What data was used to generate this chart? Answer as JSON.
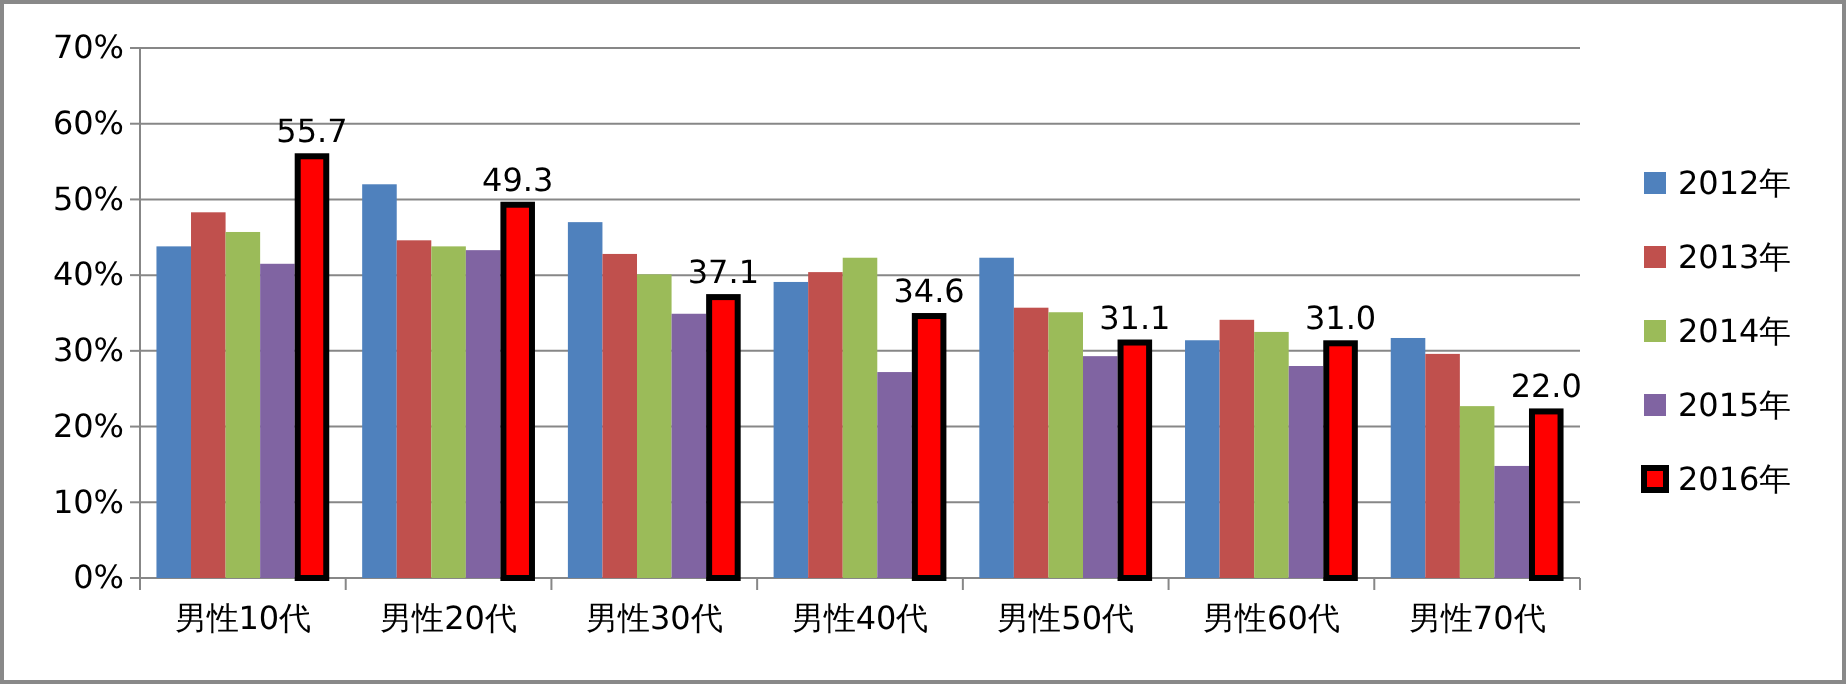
{
  "chart_data": {
    "type": "bar",
    "categories": [
      "男性10代",
      "男性20代",
      "男性30代",
      "男性40代",
      "男性50代",
      "男性60代",
      "男性70代"
    ],
    "series": [
      {
        "name": "2012年",
        "color": "#4f81bd",
        "values": [
          43.8,
          52.0,
          47.0,
          39.1,
          42.3,
          31.4,
          31.7
        ]
      },
      {
        "name": "2013年",
        "color": "#c0504d",
        "values": [
          48.3,
          44.6,
          42.8,
          40.4,
          35.7,
          34.1,
          29.6
        ]
      },
      {
        "name": "2014年",
        "color": "#9bbb59",
        "values": [
          45.7,
          43.8,
          40.1,
          42.3,
          35.1,
          32.5,
          22.7
        ]
      },
      {
        "name": "2015年",
        "color": "#8064a2",
        "values": [
          41.5,
          43.3,
          34.9,
          27.2,
          29.3,
          28.0,
          14.8
        ]
      },
      {
        "name": "2016年",
        "color": "#ff0000",
        "values": [
          55.7,
          49.3,
          37.1,
          34.6,
          31.1,
          31.0,
          22.0
        ],
        "value_labels": [
          "55.7",
          "49.3",
          "37.1",
          "34.6",
          "31.1",
          "31.0",
          "22.0"
        ]
      }
    ],
    "ylim": [
      0,
      70
    ],
    "yticks": [
      {
        "value": 0,
        "label": "0%"
      },
      {
        "value": 10,
        "label": "10%"
      },
      {
        "value": 20,
        "label": "20%"
      },
      {
        "value": 30,
        "label": "30%"
      },
      {
        "value": 40,
        "label": "40%"
      },
      {
        "value": 50,
        "label": "50%"
      },
      {
        "value": 60,
        "label": "60%"
      },
      {
        "value": 70,
        "label": "70%"
      }
    ],
    "grid": "y",
    "legend": "right"
  }
}
